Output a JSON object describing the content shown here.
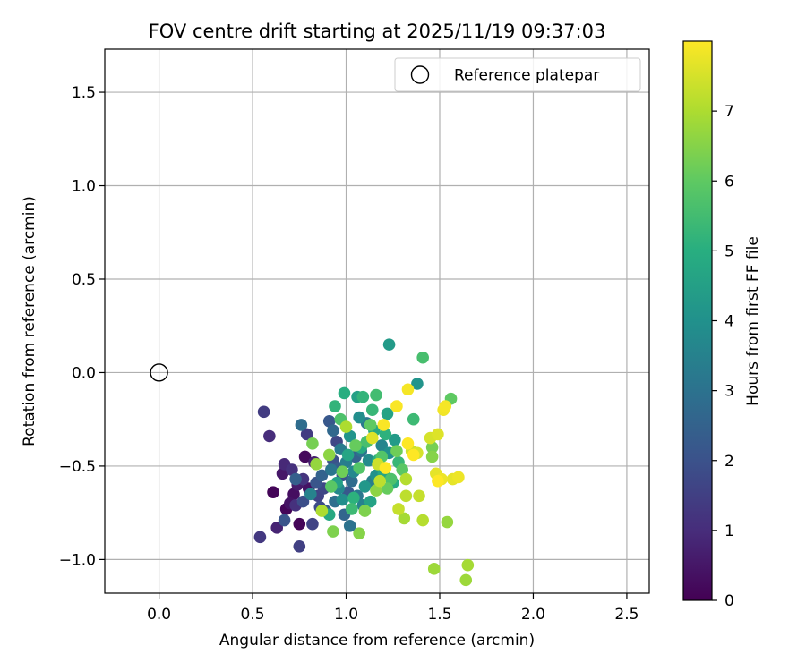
{
  "chart_data": {
    "type": "scatter",
    "title": "FOV centre drift starting at 2025/11/19 09:37:03",
    "xlabel": "Angular distance from reference (arcmin)",
    "ylabel": "Rotation from reference (arcmin)",
    "xlim": [
      -0.29,
      2.62
    ],
    "ylim": [
      -1.18,
      1.73
    ],
    "xticks": [
      0.0,
      0.5,
      1.0,
      1.5,
      2.0,
      2.5
    ],
    "xtick_labels": [
      "0.0",
      "0.5",
      "1.0",
      "1.5",
      "2.0",
      "2.5"
    ],
    "yticks": [
      -1.0,
      -0.5,
      0.0,
      0.5,
      1.0,
      1.5
    ],
    "ytick_labels": [
      "−1.0",
      "−0.5",
      "0.0",
      "0.5",
      "1.0",
      "1.5"
    ],
    "grid": true,
    "legend": {
      "position": "top-right",
      "entries": [
        "Reference platepar"
      ]
    },
    "reference_point": {
      "x": 0.0,
      "y": 0.0,
      "label": "Reference platepar"
    },
    "colorbar": {
      "label": "Hours from first FF file",
      "min": 0,
      "max": 8,
      "ticks": [
        0,
        1,
        2,
        3,
        4,
        5,
        6,
        7
      ],
      "tick_labels": [
        "0",
        "1",
        "2",
        "3",
        "4",
        "5",
        "6",
        "7"
      ],
      "colormap": "viridis"
    },
    "series": [
      {
        "name": "FOV centre drift",
        "points": [
          {
            "x": 0.68,
            "y": -0.73,
            "t": 0.1
          },
          {
            "x": 0.61,
            "y": -0.64,
            "t": 0.1
          },
          {
            "x": 0.75,
            "y": -0.81,
            "t": 0.1
          },
          {
            "x": 0.78,
            "y": -0.45,
            "t": 0.2
          },
          {
            "x": 0.72,
            "y": -0.65,
            "t": 0.3
          },
          {
            "x": 0.7,
            "y": -0.7,
            "t": 0.4
          },
          {
            "x": 0.8,
            "y": -0.62,
            "t": 0.4
          },
          {
            "x": 0.66,
            "y": -0.54,
            "t": 0.5
          },
          {
            "x": 0.74,
            "y": -0.6,
            "t": 0.6
          },
          {
            "x": 0.83,
            "y": -0.48,
            "t": 0.7
          },
          {
            "x": 0.63,
            "y": -0.83,
            "t": 0.8
          },
          {
            "x": 0.67,
            "y": -0.49,
            "t": 0.9
          },
          {
            "x": 0.59,
            "y": -0.34,
            "t": 1.0
          },
          {
            "x": 0.73,
            "y": -0.71,
            "t": 1.1
          },
          {
            "x": 0.71,
            "y": -0.52,
            "t": 1.1
          },
          {
            "x": 0.77,
            "y": -0.57,
            "t": 1.2
          },
          {
            "x": 0.54,
            "y": -0.88,
            "t": 1.3
          },
          {
            "x": 0.56,
            "y": -0.21,
            "t": 1.4
          },
          {
            "x": 0.79,
            "y": -0.33,
            "t": 1.4
          },
          {
            "x": 0.75,
            "y": -0.93,
            "t": 1.5
          },
          {
            "x": 0.82,
            "y": -0.81,
            "t": 1.6
          },
          {
            "x": 0.85,
            "y": -0.66,
            "t": 1.6
          },
          {
            "x": 0.88,
            "y": -0.62,
            "t": 1.7
          },
          {
            "x": 0.95,
            "y": -0.37,
            "t": 1.7
          },
          {
            "x": 0.86,
            "y": -0.72,
            "t": 1.8
          },
          {
            "x": 0.77,
            "y": -0.69,
            "t": 1.9
          },
          {
            "x": 0.93,
            "y": -0.47,
            "t": 2.0
          },
          {
            "x": 0.98,
            "y": -0.55,
            "t": 2.0
          },
          {
            "x": 0.84,
            "y": -0.59,
            "t": 2.1
          },
          {
            "x": 0.67,
            "y": -0.79,
            "t": 2.1
          },
          {
            "x": 0.91,
            "y": -0.26,
            "t": 2.2
          },
          {
            "x": 1.01,
            "y": -0.64,
            "t": 2.2
          },
          {
            "x": 0.89,
            "y": -0.74,
            "t": 2.3
          },
          {
            "x": 0.96,
            "y": -0.51,
            "t": 2.3
          },
          {
            "x": 0.73,
            "y": -0.57,
            "t": 2.4
          },
          {
            "x": 1.05,
            "y": -0.45,
            "t": 2.5
          },
          {
            "x": 0.87,
            "y": -0.55,
            "t": 2.5
          },
          {
            "x": 0.99,
            "y": -0.76,
            "t": 2.6
          },
          {
            "x": 0.93,
            "y": -0.31,
            "t": 2.7
          },
          {
            "x": 0.76,
            "y": -0.28,
            "t": 2.8
          },
          {
            "x": 1.03,
            "y": -0.58,
            "t": 2.8
          },
          {
            "x": 0.94,
            "y": -0.69,
            "t": 2.9
          },
          {
            "x": 1.08,
            "y": -0.42,
            "t": 3.0
          },
          {
            "x": 1.02,
            "y": -0.82,
            "t": 3.0
          },
          {
            "x": 0.92,
            "y": -0.52,
            "t": 3.1
          },
          {
            "x": 1.11,
            "y": -0.27,
            "t": 3.2
          },
          {
            "x": 1.06,
            "y": -0.66,
            "t": 3.2
          },
          {
            "x": 0.97,
            "y": -0.41,
            "t": 3.3
          },
          {
            "x": 1.14,
            "y": -0.58,
            "t": 3.4
          },
          {
            "x": 1.0,
            "y": -0.48,
            "t": 3.4
          },
          {
            "x": 0.81,
            "y": -0.65,
            "t": 3.5
          },
          {
            "x": 1.09,
            "y": -0.71,
            "t": 3.5
          },
          {
            "x": 1.19,
            "y": -0.39,
            "t": 3.6
          },
          {
            "x": 1.04,
            "y": -0.53,
            "t": 3.7
          },
          {
            "x": 0.96,
            "y": -0.62,
            "t": 3.7
          },
          {
            "x": 1.12,
            "y": -0.47,
            "t": 3.8
          },
          {
            "x": 1.07,
            "y": -0.24,
            "t": 3.9
          },
          {
            "x": 0.98,
            "y": -0.68,
            "t": 3.9
          },
          {
            "x": 1.16,
            "y": -0.55,
            "t": 4.0
          },
          {
            "x": 1.23,
            "y": -0.43,
            "t": 4.0
          },
          {
            "x": 1.38,
            "y": -0.06,
            "t": 4.1
          },
          {
            "x": 1.02,
            "y": -0.34,
            "t": 4.1
          },
          {
            "x": 1.1,
            "y": -0.61,
            "t": 4.2
          },
          {
            "x": 1.23,
            "y": 0.15,
            "t": 4.3
          },
          {
            "x": 1.26,
            "y": -0.36,
            "t": 4.3
          },
          {
            "x": 1.18,
            "y": -0.5,
            "t": 4.4
          },
          {
            "x": 1.06,
            "y": -0.13,
            "t": 4.5
          },
          {
            "x": 0.95,
            "y": -0.59,
            "t": 4.5
          },
          {
            "x": 1.22,
            "y": -0.22,
            "t": 4.6
          },
          {
            "x": 1.13,
            "y": -0.69,
            "t": 4.6
          },
          {
            "x": 1.01,
            "y": -0.44,
            "t": 4.7
          },
          {
            "x": 1.2,
            "y": -0.54,
            "t": 4.7
          },
          {
            "x": 1.15,
            "y": -0.31,
            "t": 4.8
          },
          {
            "x": 0.91,
            "y": -0.76,
            "t": 4.8
          },
          {
            "x": 1.08,
            "y": -0.4,
            "t": 4.9
          },
          {
            "x": 1.25,
            "y": -0.59,
            "t": 4.9
          },
          {
            "x": 0.99,
            "y": -0.11,
            "t": 5.0
          },
          {
            "x": 1.17,
            "y": -0.47,
            "t": 5.0
          },
          {
            "x": 1.04,
            "y": -0.67,
            "t": 5.1
          },
          {
            "x": 1.21,
            "y": -0.33,
            "t": 5.1
          },
          {
            "x": 1.09,
            "y": -0.13,
            "t": 5.2
          },
          {
            "x": 0.94,
            "y": -0.18,
            "t": 5.2
          },
          {
            "x": 1.28,
            "y": -0.48,
            "t": 5.3
          },
          {
            "x": 1.14,
            "y": -0.2,
            "t": 5.3
          },
          {
            "x": 1.36,
            "y": -0.25,
            "t": 5.4
          },
          {
            "x": 1.03,
            "y": -0.73,
            "t": 5.4
          },
          {
            "x": 1.16,
            "y": -0.12,
            "t": 5.5
          },
          {
            "x": 1.41,
            "y": 0.08,
            "t": 5.6
          },
          {
            "x": 1.11,
            "y": -0.37,
            "t": 5.6
          },
          {
            "x": 0.97,
            "y": -0.25,
            "t": 5.7
          },
          {
            "x": 1.24,
            "y": -0.57,
            "t": 5.7
          },
          {
            "x": 1.07,
            "y": -0.51,
            "t": 5.8
          },
          {
            "x": 1.19,
            "y": -0.45,
            "t": 5.8
          },
          {
            "x": 1.3,
            "y": -0.52,
            "t": 5.9
          },
          {
            "x": 0.92,
            "y": -0.61,
            "t": 5.9
          },
          {
            "x": 1.13,
            "y": -0.28,
            "t": 6.0
          },
          {
            "x": 1.56,
            "y": -0.14,
            "t": 6.0
          },
          {
            "x": 1.05,
            "y": -0.39,
            "t": 6.1
          },
          {
            "x": 1.22,
            "y": -0.62,
            "t": 6.1
          },
          {
            "x": 0.98,
            "y": -0.53,
            "t": 6.2
          },
          {
            "x": 1.27,
            "y": -0.42,
            "t": 6.2
          },
          {
            "x": 1.46,
            "y": -0.4,
            "t": 6.3
          },
          {
            "x": 0.82,
            "y": -0.38,
            "t": 6.3
          },
          {
            "x": 1.1,
            "y": -0.74,
            "t": 6.4
          },
          {
            "x": 0.93,
            "y": -0.85,
            "t": 6.4
          },
          {
            "x": 1.46,
            "y": -0.45,
            "t": 6.5
          },
          {
            "x": 1.07,
            "y": -0.86,
            "t": 6.5
          },
          {
            "x": 1.16,
            "y": -0.63,
            "t": 6.6
          },
          {
            "x": 0.91,
            "y": -0.44,
            "t": 6.6
          },
          {
            "x": 1.54,
            "y": -0.8,
            "t": 6.7
          },
          {
            "x": 0.84,
            "y": -0.49,
            "t": 6.7
          },
          {
            "x": 1.47,
            "y": -1.05,
            "t": 6.8
          },
          {
            "x": 1.64,
            "y": -1.11,
            "t": 6.8
          },
          {
            "x": 1.65,
            "y": -1.03,
            "t": 6.9
          },
          {
            "x": 1.31,
            "y": -0.78,
            "t": 6.9
          },
          {
            "x": 0.87,
            "y": -0.74,
            "t": 7.0
          },
          {
            "x": 1.0,
            "y": -0.29,
            "t": 7.0
          },
          {
            "x": 1.32,
            "y": -0.57,
            "t": 7.1
          },
          {
            "x": 1.41,
            "y": -0.79,
            "t": 7.1
          },
          {
            "x": 1.18,
            "y": -0.58,
            "t": 7.2
          },
          {
            "x": 1.32,
            "y": -0.66,
            "t": 7.2
          },
          {
            "x": 1.28,
            "y": -0.73,
            "t": 7.3
          },
          {
            "x": 1.39,
            "y": -0.66,
            "t": 7.3
          },
          {
            "x": 1.17,
            "y": -0.49,
            "t": 7.4
          },
          {
            "x": 1.35,
            "y": -0.42,
            "t": 7.4
          },
          {
            "x": 1.45,
            "y": -0.35,
            "t": 7.5
          },
          {
            "x": 1.38,
            "y": -0.43,
            "t": 7.5
          },
          {
            "x": 1.14,
            "y": -0.35,
            "t": 7.6
          },
          {
            "x": 1.49,
            "y": -0.33,
            "t": 7.6
          },
          {
            "x": 1.48,
            "y": -0.54,
            "t": 7.7
          },
          {
            "x": 1.57,
            "y": -0.57,
            "t": 7.7
          },
          {
            "x": 1.6,
            "y": -0.56,
            "t": 7.8
          },
          {
            "x": 1.51,
            "y": -0.57,
            "t": 7.8
          },
          {
            "x": 1.52,
            "y": -0.2,
            "t": 7.85
          },
          {
            "x": 1.53,
            "y": -0.18,
            "t": 7.9
          },
          {
            "x": 1.33,
            "y": -0.09,
            "t": 7.9
          },
          {
            "x": 1.27,
            "y": -0.18,
            "t": 7.95
          },
          {
            "x": 1.2,
            "y": -0.28,
            "t": 7.95
          },
          {
            "x": 1.33,
            "y": -0.38,
            "t": 8.0
          },
          {
            "x": 1.36,
            "y": -0.44,
            "t": 8.0
          },
          {
            "x": 1.21,
            "y": -0.51,
            "t": 8.0
          },
          {
            "x": 1.49,
            "y": -0.58,
            "t": 8.0
          }
        ]
      }
    ]
  }
}
